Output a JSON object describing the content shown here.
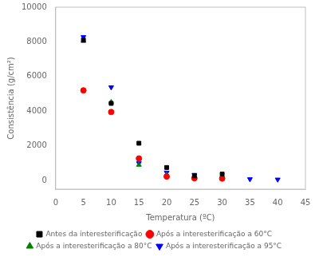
{
  "chart_data": {
    "type": "scatter",
    "xlabel": "Temperatura (ºC)",
    "ylabel": "Consistência (g/cm²)",
    "xlim": [
      0,
      45
    ],
    "ylim": [
      -500,
      10000
    ],
    "xticks": [
      0,
      5,
      10,
      15,
      20,
      25,
      30,
      35,
      40,
      45
    ],
    "yticks": [
      0,
      2000,
      4000,
      6000,
      8000,
      10000
    ],
    "grid": false,
    "legend": "bottom",
    "series": [
      {
        "name": "Antes da interesterificação",
        "color": "black",
        "marker": "square",
        "x": [
          5,
          10,
          15,
          20,
          25,
          30
        ],
        "values": [
          8100,
          4450,
          2150,
          750,
          270,
          370
        ]
      },
      {
        "name": "Após a interesterificação a 60°C",
        "color": "red",
        "marker": "circle",
        "x": [
          5,
          10,
          15,
          20,
          25,
          30
        ],
        "values": [
          5200,
          3950,
          1270,
          230,
          130,
          120
        ]
      },
      {
        "name": "Após a interesterificação a 80°C",
        "color": "green",
        "marker": "triangle_up",
        "x": [
          5,
          10,
          15,
          20,
          25,
          30
        ],
        "values": [
          8050,
          4520,
          900,
          350,
          220,
          100
        ]
      },
      {
        "name": "Após a interesterificação a 95°C",
        "color": "blue",
        "marker": "triangle_down",
        "x": [
          5,
          10,
          15,
          20,
          25,
          30,
          35,
          40
        ],
        "values": [
          8280,
          5380,
          1000,
          460,
          330,
          110,
          80,
          60
        ]
      }
    ]
  }
}
